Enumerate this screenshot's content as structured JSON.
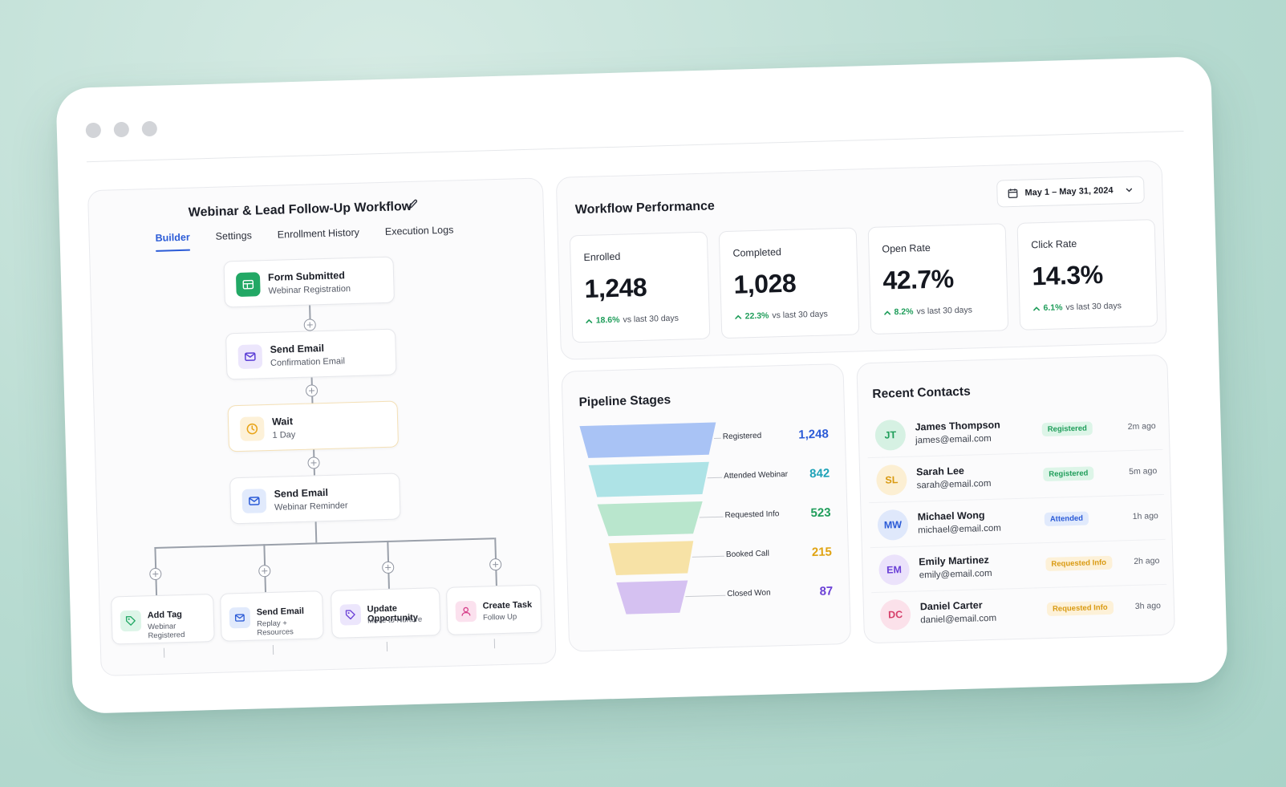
{
  "workflow": {
    "title": "Webinar & Lead Follow-Up Workflow",
    "tabs": [
      "Builder",
      "Settings",
      "Enrollment History",
      "Execution Logs"
    ],
    "active_tab": "Builder",
    "steps": [
      {
        "title": "Form Submitted",
        "subtitle": "Webinar Registration",
        "icon": "form-icon",
        "color": "#22a865"
      },
      {
        "title": "Send Email",
        "subtitle": "Confirmation Email",
        "icon": "mail-icon",
        "color": "#5b3fd6"
      },
      {
        "title": "Wait",
        "subtitle": "1 Day",
        "icon": "clock-icon",
        "color": "#e8a317"
      },
      {
        "title": "Send Email",
        "subtitle": "Webinar Reminder",
        "icon": "mail-icon",
        "color": "#2b5bd7"
      }
    ],
    "branches": [
      {
        "title": "Add Tag",
        "subtitle": "Webinar Registered",
        "icon": "tag-icon",
        "color": "#22a865"
      },
      {
        "title": "Send Email",
        "subtitle": "Replay + Resources",
        "icon": "mail-icon",
        "color": "#2b5bd7"
      },
      {
        "title": "Update Opportunity",
        "subtitle": "Move to Nurture",
        "icon": "tag-icon",
        "color": "#6a3fd6"
      },
      {
        "title": "Create Task",
        "subtitle": "Follow Up",
        "icon": "user-icon",
        "color": "#d63f8a"
      }
    ]
  },
  "performance": {
    "title": "Workflow Performance",
    "date_range": "May 1 – May 31, 2024",
    "comparison": "vs last 30 days",
    "metrics": [
      {
        "label": "Enrolled",
        "value": "1,248",
        "delta": "18.6%"
      },
      {
        "label": "Completed",
        "value": "1,028",
        "delta": "22.3%"
      },
      {
        "label": "Open Rate",
        "value": "42.7%",
        "delta": "8.2%"
      },
      {
        "label": "Click Rate",
        "value": "14.3%",
        "delta": "6.1%"
      }
    ],
    "delta_color": "#1f9d5a"
  },
  "pipeline": {
    "title": "Pipeline Stages",
    "stages": [
      {
        "label": "Registered",
        "value": 1248,
        "display": "1,248",
        "fill": "#a9c3f5",
        "text_color": "#2b5bd7"
      },
      {
        "label": "Attended Webinar",
        "value": 842,
        "display": "842",
        "fill": "#aee3e6",
        "text_color": "#1fa3b8"
      },
      {
        "label": "Requested Info",
        "value": 523,
        "display": "523",
        "fill": "#b9e6cd",
        "text_color": "#1f9d5a"
      },
      {
        "label": "Booked Call",
        "value": 215,
        "display": "215",
        "fill": "#f7e2a6",
        "text_color": "#e0a312"
      },
      {
        "label": "Closed Won",
        "value": 87,
        "display": "87",
        "fill": "#d5c1f1",
        "text_color": "#6a3fd6"
      }
    ]
  },
  "contacts": {
    "title": "Recent Contacts",
    "rows": [
      {
        "initials": "JT",
        "name": "James Thompson",
        "email": "james@email.com",
        "status": "Registered",
        "time": "2m ago",
        "avatar_bg": "#d6f1e3",
        "avatar_fg": "#1f9d5a",
        "badge_bg": "#ddf5e8",
        "badge_fg": "#1f9d5a"
      },
      {
        "initials": "SL",
        "name": "Sarah Lee",
        "email": "sarah@email.com",
        "status": "Registered",
        "time": "5m ago",
        "avatar_bg": "#fcefd3",
        "avatar_fg": "#d99a12",
        "badge_bg": "#ddf5e8",
        "badge_fg": "#1f9d5a"
      },
      {
        "initials": "MW",
        "name": "Michael Wong",
        "email": "michael@email.com",
        "status": "Attended",
        "time": "1h ago",
        "avatar_bg": "#dfe8fb",
        "avatar_fg": "#2b5bd7",
        "badge_bg": "#e1eafc",
        "badge_fg": "#2b5bd7"
      },
      {
        "initials": "EM",
        "name": "Emily Martinez",
        "email": "emily@email.com",
        "status": "Requested Info",
        "time": "2h ago",
        "avatar_bg": "#ebe2fb",
        "avatar_fg": "#6a3fd6",
        "badge_bg": "#fdf1d8",
        "badge_fg": "#d99a12"
      },
      {
        "initials": "DC",
        "name": "Daniel Carter",
        "email": "daniel@email.com",
        "status": "Requested Info",
        "time": "3h ago",
        "avatar_bg": "#fbe1ea",
        "avatar_fg": "#d63f6a",
        "badge_bg": "#fdf1d8",
        "badge_fg": "#d99a12"
      }
    ]
  }
}
